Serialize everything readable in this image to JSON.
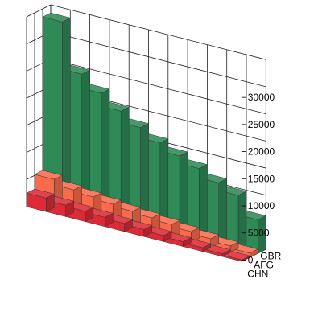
{
  "chart_data": {
    "type": "bar",
    "subtype": "3d-stacked-layers",
    "z_ticks": [
      "0",
      "5000",
      "10000",
      "15000",
      "20000",
      "25000",
      "30000"
    ],
    "z_range": [
      0,
      35000
    ],
    "depth_categories": [
      "CHN",
      "AFG",
      "GBR"
    ],
    "series": [
      {
        "name": "CHN",
        "color": "#dd2a36",
        "values": [
          2500,
          2100,
          1900,
          1700,
          1500,
          1300,
          1100,
          900,
          700,
          500,
          300
        ]
      },
      {
        "name": "AFG",
        "color": "#fb6a4a",
        "values": [
          5200,
          4200,
          3800,
          3400,
          3000,
          2700,
          2400,
          2000,
          1600,
          1200,
          800
        ]
      },
      {
        "name": "GBR",
        "color": "#2e8b57",
        "values": [
          33500,
          24800,
          22200,
          19800,
          17700,
          15800,
          14300,
          12900,
          11200,
          9800,
          6200
        ]
      }
    ],
    "grid": true,
    "legend": "none"
  }
}
